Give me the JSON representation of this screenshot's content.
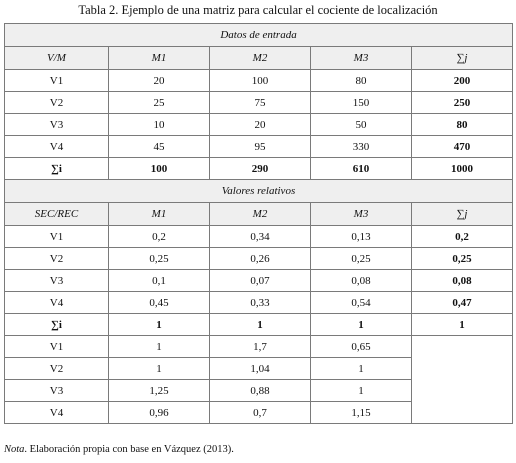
{
  "caption": "Tabla 2. Ejemplo de una matriz para calcular el cociente de localización",
  "section1": {
    "title": "Datos de entrada",
    "headers": [
      "V/M",
      "M1",
      "M2",
      "M3",
      "∑j"
    ],
    "rows": [
      [
        "V1",
        "20",
        "100",
        "80",
        "200"
      ],
      [
        "V2",
        "25",
        "75",
        "150",
        "250"
      ],
      [
        "V3",
        "10",
        "20",
        "50",
        "80"
      ],
      [
        "V4",
        "45",
        "95",
        "330",
        "470"
      ]
    ],
    "total": [
      "∑i",
      "100",
      "290",
      "610",
      "1000"
    ]
  },
  "section2": {
    "title": "Valores relativos",
    "headers": [
      "SEC/REC",
      "M1",
      "M2",
      "M3",
      "∑j"
    ],
    "rows": [
      [
        "V1",
        "0,2",
        "0,34",
        "0,13",
        "0,2"
      ],
      [
        "V2",
        "0,25",
        "0,26",
        "0,25",
        "0,25"
      ],
      [
        "V3",
        "0,1",
        "0,07",
        "0,08",
        "0,08"
      ],
      [
        "V4",
        "0,45",
        "0,33",
        "0,54",
        "0,47"
      ]
    ],
    "total": [
      "∑i",
      "1",
      "1",
      "1",
      "1"
    ],
    "quotients": [
      [
        "V1",
        "1",
        "1,7",
        "0,65"
      ],
      [
        "V2",
        "1",
        "1,04",
        "1"
      ],
      [
        "V3",
        "1,25",
        "0,88",
        "1"
      ],
      [
        "V4",
        "0,96",
        "0,7",
        "1,15"
      ]
    ]
  },
  "note": {
    "label": "Nota",
    "text": ". Elaboración propia con base en Vázquez (2013)."
  }
}
